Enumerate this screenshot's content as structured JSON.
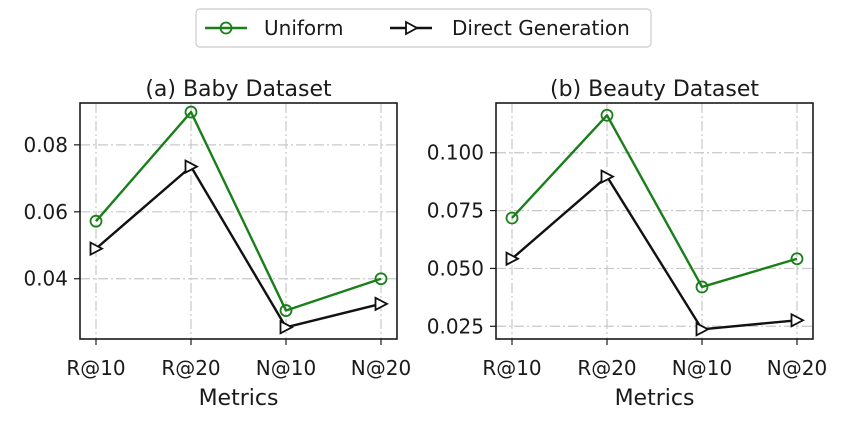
{
  "legend": {
    "entries": [
      {
        "name": "Uniform",
        "color": "#1a7f1a",
        "marker": "circle"
      },
      {
        "name": "Direct Generation",
        "color": "#111111",
        "marker": "triangle-right"
      }
    ]
  },
  "chart_data": [
    {
      "type": "line",
      "title": "(a) Baby Dataset",
      "xlabel": "Metrics",
      "ylabel": "",
      "categories": [
        "R@10",
        "R@20",
        "N@10",
        "N@20"
      ],
      "ylim": [
        0.022,
        0.0925
      ],
      "yticks": [
        0.04,
        0.06,
        0.08
      ],
      "ytick_labels": [
        "0.04",
        "0.06",
        "0.08"
      ],
      "grid": true,
      "series": [
        {
          "name": "Uniform",
          "color": "#1a7f1a",
          "marker": "circle",
          "values": [
            0.0572,
            0.0898,
            0.0305,
            0.04
          ]
        },
        {
          "name": "Direct Generation",
          "color": "#111111",
          "marker": "triangle-right",
          "values": [
            0.049,
            0.0735,
            0.0255,
            0.0325
          ]
        }
      ]
    },
    {
      "type": "line",
      "title": "(b) Beauty Dataset",
      "xlabel": "Metrics",
      "ylabel": "",
      "categories": [
        "R@10",
        "R@20",
        "N@10",
        "N@20"
      ],
      "ylim": [
        0.0195,
        0.1215
      ],
      "yticks": [
        0.025,
        0.05,
        0.075,
        0.1
      ],
      "ytick_labels": [
        "0.025",
        "0.050",
        "0.075",
        "0.100"
      ],
      "grid": true,
      "series": [
        {
          "name": "Uniform",
          "color": "#1a7f1a",
          "marker": "circle",
          "values": [
            0.0718,
            0.1162,
            0.042,
            0.0542
          ]
        },
        {
          "name": "Direct Generation",
          "color": "#111111",
          "marker": "triangle-right",
          "values": [
            0.0542,
            0.0897,
            0.0237,
            0.0276
          ]
        }
      ]
    }
  ]
}
